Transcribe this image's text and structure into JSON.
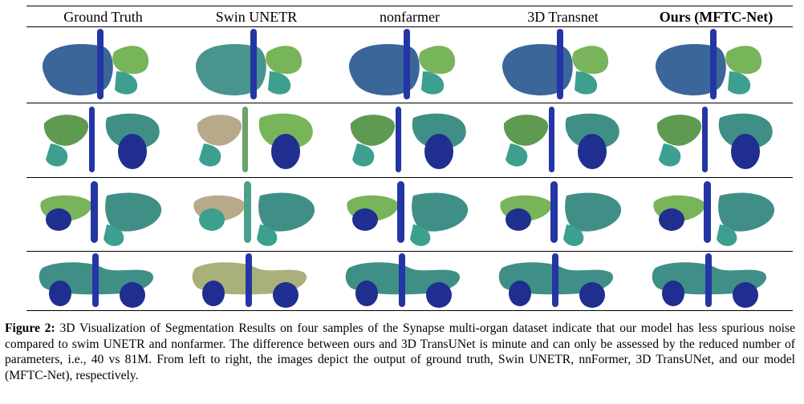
{
  "columns": [
    {
      "title": "Ground Truth",
      "bold": false
    },
    {
      "title": "Swin UNETR",
      "bold": false
    },
    {
      "title": "nonfarmer",
      "bold": false
    },
    {
      "title": "3D Transnet",
      "bold": false
    },
    {
      "title": "Ours (MFTC-Net)",
      "bold": true
    }
  ],
  "rows": 4,
  "caption": {
    "label": "Figure 2:",
    "text": " 3D Visualization of Segmentation Results on four samples of the Synapse multi-organ dataset indicate that our model has less spurious noise compared to swim UNETR and nonfarmer. The difference between ours and 3D TransUNet is minute and can only be assessed by the reduced number of parameters, i.e., 40 vs 81M.   From left to right, the images depict the output of ground truth, Swin UNETR, nnFormer, 3D TransUNet, and our model (MFTC-Net), respectively."
  },
  "colors": {
    "liver": "#2f5e93",
    "liver_alt": "#3f8f87",
    "spleen": "#5e9a4f",
    "stomach": "#78b45a",
    "aorta": "#2435a6",
    "kidney": "#1f2e8f",
    "pancreas": "#3c9f8f",
    "noise": "#a9b07a"
  }
}
